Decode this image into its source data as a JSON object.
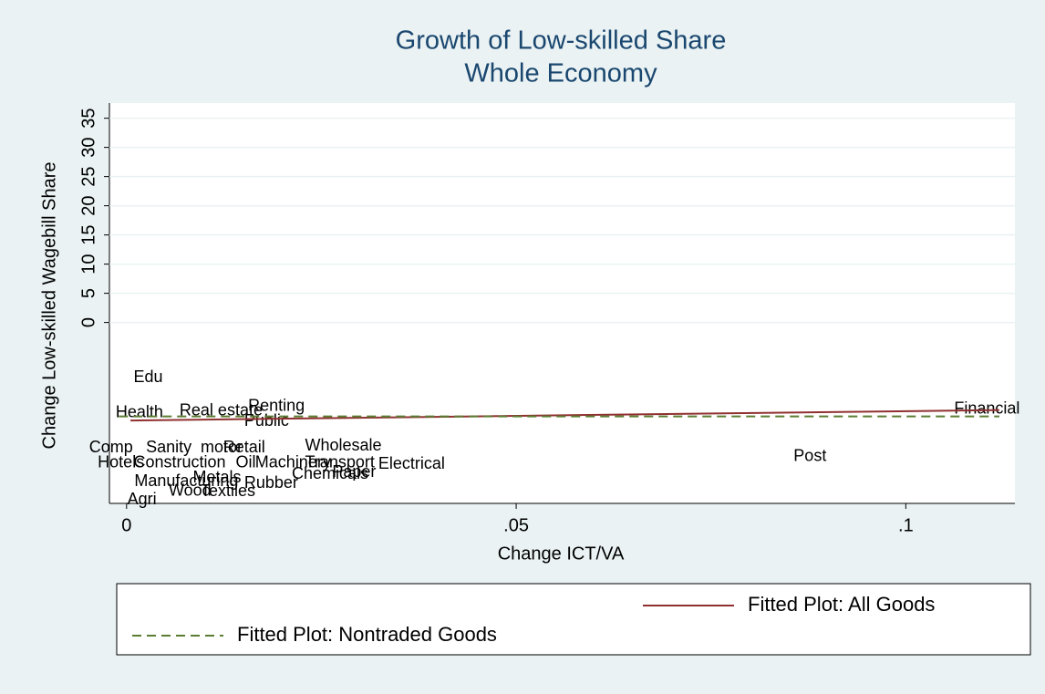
{
  "chart_data": {
    "type": "scatter",
    "title": "Growth of Low-skilled Share",
    "subtitle": "Whole Economy",
    "x_label": "Change ICT/VA",
    "y_label": "Change Low-skilled Wagebill Share",
    "xlim": [
      -0.0022,
      0.114
    ],
    "ylim": [
      -31,
      37.6
    ],
    "xticks": [
      0,
      0.05,
      0.1
    ],
    "xtick_labels": [
      "0",
      ".05",
      ".1"
    ],
    "yticks": [
      0,
      5,
      10,
      15,
      20,
      25,
      30,
      35
    ],
    "grid": true,
    "points": {
      "labels": [
        "Edu",
        "Health",
        "Real estate",
        "Renting",
        "Public",
        "Financial",
        "Post",
        "Wholesale",
        "Comp",
        "Sanity",
        "motor",
        "Retail",
        "Hotels",
        "Construction",
        "Oil",
        "Machinery",
        "Transport",
        "Electrical",
        "Chemicals",
        "Paper",
        "Manufacturing",
        "Metals",
        "Rubber",
        "Wood",
        "Textiles",
        "Agri"
      ],
      "x": [
        0.0009,
        -0.0014,
        0.0068,
        0.0156,
        0.0151,
        0.1062,
        0.0856,
        0.0229,
        -0.0048,
        0.0025,
        0.0095,
        0.0124,
        -0.0037,
        0.0009,
        0.014,
        0.0165,
        0.0229,
        0.0323,
        0.0212,
        0.0264,
        0.001,
        0.0085,
        0.0151,
        0.0054,
        0.0095,
        0.0001
      ],
      "y": [
        -9.5,
        -15.5,
        -15.2,
        -14.4,
        -17.0,
        -14.9,
        -23.0,
        -21.2,
        -21.5,
        -21.5,
        -21.5,
        -21.5,
        -24.1,
        -24.1,
        -24.1,
        -24.1,
        -24.1,
        -24.3,
        -26.0,
        -25.7,
        -27.3,
        -26.7,
        -27.6,
        -28.9,
        -29.0,
        -30.4
      ]
    },
    "series": [
      {
        "name": "Fitted Plot: All Goods",
        "color": "#903030",
        "dash": false,
        "x": [
          0.0005,
          0.112
        ],
        "values": [
          -16.8,
          -15.0
        ]
      },
      {
        "name": "Fitted Plot: Nontraded Goods",
        "color": "#5a7d32",
        "dash": true,
        "x": [
          -0.001,
          0.112
        ],
        "values": [
          -16.1,
          -16.1
        ]
      }
    ]
  }
}
